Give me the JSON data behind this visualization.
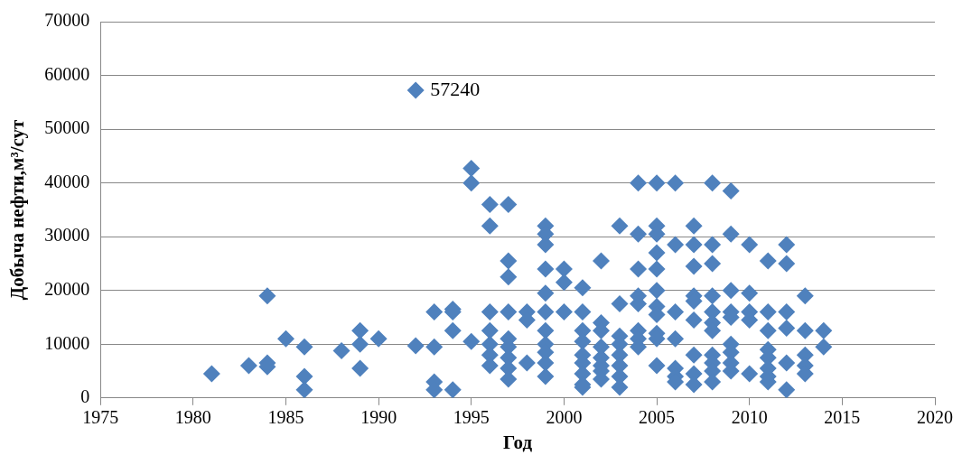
{
  "chart_data": {
    "type": "scatter",
    "xlabel": "Год",
    "ylabel": "Добыча нефти,м³/сут",
    "x": [
      1981,
      1983,
      1984,
      1984,
      1984,
      1985,
      1986,
      1986,
      1986,
      1988,
      1989,
      1989,
      1989,
      1990,
      1992,
      1992,
      1993,
      1993,
      1993,
      1993,
      1994,
      1994,
      1994,
      1994,
      1995,
      1995,
      1995,
      1996,
      1996,
      1996,
      1996,
      1996,
      1996,
      1996,
      1997,
      1997,
      1997,
      1997,
      1997,
      1997,
      1997,
      1997,
      1997,
      1998,
      1998,
      1998,
      1999,
      1999,
      1999,
      1999,
      1999,
      1999,
      1999,
      1999,
      1999,
      1999,
      1999,
      2000,
      2000,
      2000,
      2001,
      2001,
      2001,
      2001,
      2001,
      2001,
      2001,
      2001,
      2001,
      2002,
      2002,
      2002,
      2002,
      2002,
      2002,
      2002,
      2002,
      2003,
      2003,
      2003,
      2003,
      2003,
      2003,
      2003,
      2003,
      2004,
      2004,
      2004,
      2004,
      2004,
      2004,
      2004,
      2004,
      2005,
      2005,
      2005,
      2005,
      2005,
      2005,
      2005,
      2005,
      2005,
      2005,
      2005,
      2006,
      2006,
      2006,
      2006,
      2006,
      2006,
      2006,
      2007,
      2007,
      2007,
      2007,
      2007,
      2007,
      2007,
      2007,
      2007,
      2008,
      2008,
      2008,
      2008,
      2008,
      2008,
      2008,
      2008,
      2008,
      2008,
      2008,
      2009,
      2009,
      2009,
      2009,
      2009,
      2009,
      2009,
      2009,
      2009,
      2010,
      2010,
      2010,
      2010,
      2010,
      2011,
      2011,
      2011,
      2011,
      2011,
      2011,
      2011,
      2011,
      2012,
      2012,
      2012,
      2012,
      2012,
      2012,
      2013,
      2013,
      2013,
      2013,
      2013,
      2014,
      2014
    ],
    "values": [
      4500,
      6000,
      19000,
      6500,
      5800,
      11000,
      9500,
      4000,
      1500,
      8800,
      12500,
      10000,
      5500,
      11000,
      9700,
      57240,
      16000,
      9500,
      3000,
      1500,
      16500,
      16000,
      12500,
      1500,
      42700,
      40000,
      10500,
      36000,
      32000,
      16000,
      12500,
      10000,
      8000,
      6000,
      36000,
      25500,
      22500,
      16000,
      11000,
      9500,
      7500,
      5500,
      3500,
      16000,
      14500,
      6500,
      32000,
      30500,
      28500,
      24000,
      19500,
      16000,
      12500,
      10000,
      8500,
      6500,
      4000,
      24000,
      21500,
      16000,
      20500,
      16000,
      12500,
      10500,
      8000,
      6500,
      4500,
      2500,
      2000,
      25500,
      14000,
      12500,
      9500,
      7500,
      6000,
      5000,
      3500,
      32000,
      17500,
      11500,
      10000,
      8000,
      6000,
      4000,
      2000,
      40000,
      30500,
      24000,
      19000,
      17500,
      12500,
      11000,
      9500,
      40000,
      32000,
      30500,
      27000,
      24000,
      20000,
      17000,
      15500,
      12000,
      11000,
      6000,
      40000,
      28500,
      16000,
      11000,
      5500,
      4000,
      3000,
      32000,
      28500,
      24500,
      19000,
      18000,
      14500,
      8000,
      4500,
      2500,
      40000,
      28500,
      25000,
      19000,
      16000,
      14000,
      12500,
      8000,
      6500,
      5000,
      3000,
      38500,
      30500,
      20000,
      16000,
      15000,
      10000,
      8500,
      6500,
      5000,
      28500,
      19500,
      16000,
      14500,
      4500,
      25500,
      16000,
      12500,
      9000,
      7500,
      5500,
      4000,
      3000,
      28500,
      25000,
      16000,
      13000,
      6500,
      1500,
      19000,
      12500,
      8000,
      6000,
      4500,
      12500,
      9500
    ],
    "value_labels": [
      null,
      null,
      null,
      null,
      null,
      null,
      null,
      null,
      null,
      null,
      null,
      null,
      null,
      null,
      null,
      "57240",
      null,
      null,
      null,
      null,
      null,
      null,
      null,
      null,
      null,
      null,
      null,
      null,
      null,
      null,
      null,
      null,
      null,
      null,
      null,
      null,
      null,
      null,
      null,
      null,
      null,
      null,
      null,
      null,
      null,
      null,
      null,
      null,
      null,
      null,
      null,
      null,
      null,
      null,
      null,
      null,
      null,
      null,
      null,
      null,
      null,
      null,
      null,
      null,
      null,
      null,
      null,
      null,
      null,
      null,
      null,
      null,
      null,
      null,
      null,
      null,
      null,
      null,
      null,
      null,
      null,
      null,
      null,
      null,
      null,
      null,
      null,
      null,
      null,
      null,
      null,
      null,
      null,
      null,
      null,
      null,
      null,
      null,
      null,
      null,
      null,
      null,
      null,
      null,
      null,
      null,
      null,
      null,
      null,
      null,
      null,
      null,
      null,
      null,
      null,
      null,
      null,
      null,
      null,
      null,
      null,
      null,
      null,
      null,
      null,
      null,
      null,
      null,
      null,
      null,
      null,
      null,
      null,
      null,
      null,
      null,
      null,
      null,
      null,
      null,
      null,
      null,
      null,
      null,
      null,
      null,
      null,
      null,
      null,
      null,
      null,
      null,
      null,
      null,
      null,
      null,
      null,
      null,
      null,
      null,
      null,
      null,
      null,
      null,
      null,
      null
    ],
    "color": "#4f81bd",
    "marker": "diamond",
    "grid": "y",
    "legend": false,
    "xlim": [
      1975,
      2020
    ],
    "xticks": [
      1975,
      1980,
      1985,
      1990,
      1995,
      2000,
      2005,
      2010,
      2015,
      2020
    ],
    "ylim": [
      0,
      70000
    ],
    "yticks": [
      0,
      10000,
      20000,
      30000,
      40000,
      50000,
      60000,
      70000
    ]
  }
}
